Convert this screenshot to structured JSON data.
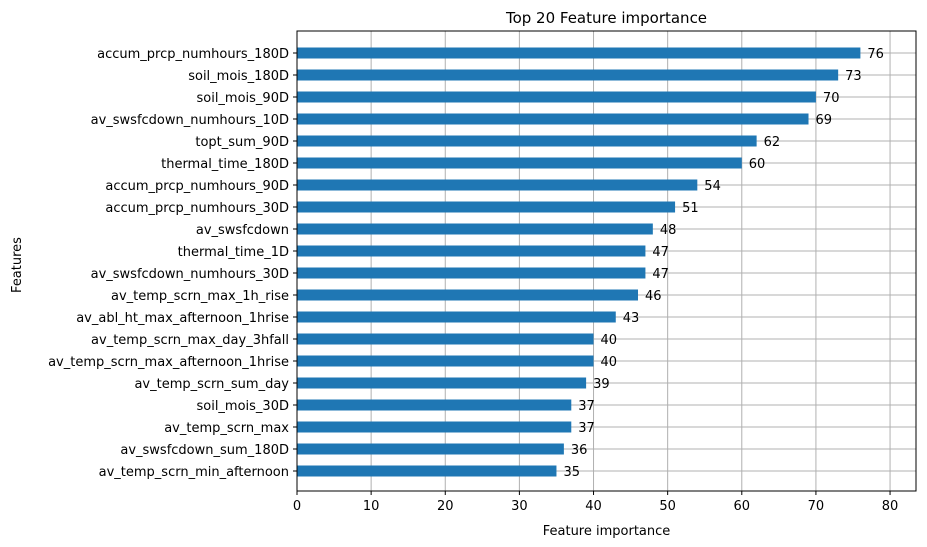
{
  "chart_data": {
    "type": "bar",
    "orientation": "horizontal",
    "title": "Top 20 Feature importance",
    "xlabel": "Feature importance",
    "ylabel": "Features",
    "xlim": [
      0,
      83.5
    ],
    "xticks": [
      0,
      10,
      20,
      30,
      40,
      50,
      60,
      70,
      80
    ],
    "grid": true,
    "bar_color": "#1f77b4",
    "categories": [
      "accum_prcp_numhours_180D",
      "soil_mois_180D",
      "soil_mois_90D",
      "av_swsfcdown_numhours_10D",
      "topt_sum_90D",
      "thermal_time_180D",
      "accum_prcp_numhours_90D",
      "accum_prcp_numhours_30D",
      "av_swsfcdown",
      "thermal_time_1D",
      "av_swsfcdown_numhours_30D",
      "av_temp_scrn_max_1h_rise",
      "av_abl_ht_max_afternoon_1hrise",
      "av_temp_scrn_max_day_3hfall",
      "av_temp_scrn_max_afternoon_1hrise",
      "av_temp_scrn_sum_day",
      "soil_mois_30D",
      "av_temp_scrn_max",
      "av_swsfcdown_sum_180D",
      "av_temp_scrn_min_afternoon"
    ],
    "values": [
      76,
      73,
      70,
      69,
      62,
      60,
      54,
      51,
      48,
      47,
      47,
      46,
      43,
      40,
      40,
      39,
      37,
      37,
      36,
      35
    ]
  }
}
